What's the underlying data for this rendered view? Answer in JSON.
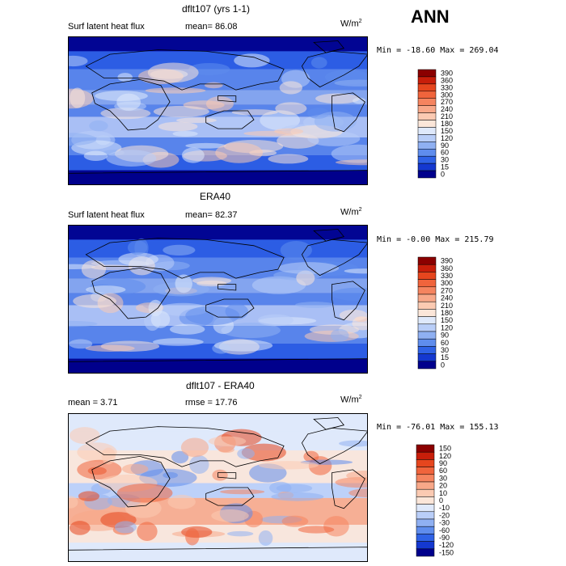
{
  "season": "ANN",
  "panels": [
    {
      "title": "dflt107 (yrs 1-1)",
      "field": "Surf latent heat flux",
      "stat1": "mean=  86.08",
      "stat2": "",
      "units": "W/m",
      "units_sup": "2",
      "range_text": "Min = -18.60 Max = 269.04",
      "levels": [
        "390",
        "360",
        "330",
        "300",
        "270",
        "240",
        "210",
        "180",
        "150",
        "120",
        "90",
        "60",
        "30",
        "15",
        "0"
      ],
      "colors": [
        "#8b0000",
        "#c81e0a",
        "#e6461e",
        "#f0643c",
        "#f5845f",
        "#f8a889",
        "#fbcab2",
        "#fbe6d9",
        "#dfe9fb",
        "#b9cef8",
        "#8fb0f2",
        "#5f8ded",
        "#2f62e6",
        "#1438d0",
        "#00008c"
      ]
    },
    {
      "title": "ERA40",
      "field": "Surf latent heat flux",
      "stat1": "mean=  82.37",
      "stat2": "",
      "units": "W/m",
      "units_sup": "2",
      "range_text": "Min =  -0.00 Max = 215.79",
      "levels": [
        "390",
        "360",
        "330",
        "300",
        "270",
        "240",
        "210",
        "180",
        "150",
        "120",
        "90",
        "60",
        "30",
        "15",
        "0"
      ],
      "colors": [
        "#8b0000",
        "#c81e0a",
        "#e6461e",
        "#f0643c",
        "#f5845f",
        "#f8a889",
        "#fbcab2",
        "#fbe6d9",
        "#dfe9fb",
        "#b9cef8",
        "#8fb0f2",
        "#5f8ded",
        "#2f62e6",
        "#1438d0",
        "#00008c"
      ]
    },
    {
      "title": "dflt107 - ERA40",
      "field": "",
      "stat1": "mean =   3.71",
      "stat2": "rmse =  17.76",
      "units": "W/m",
      "units_sup": "2",
      "range_text": "Min = -76.01 Max = 155.13",
      "levels": [
        "150",
        "120",
        "90",
        "60",
        "30",
        "20",
        "10",
        "0",
        "-10",
        "-20",
        "-30",
        "-60",
        "-90",
        "-120",
        "-150"
      ],
      "colors": [
        "#8b0000",
        "#c81e0a",
        "#e6461e",
        "#f0643c",
        "#f5845f",
        "#f8a889",
        "#fbcab2",
        "#fbe6d9",
        "#dfe9fb",
        "#b9cef8",
        "#8fb0f2",
        "#5f8ded",
        "#2f62e6",
        "#1438d0",
        "#00008c"
      ]
    }
  ]
}
